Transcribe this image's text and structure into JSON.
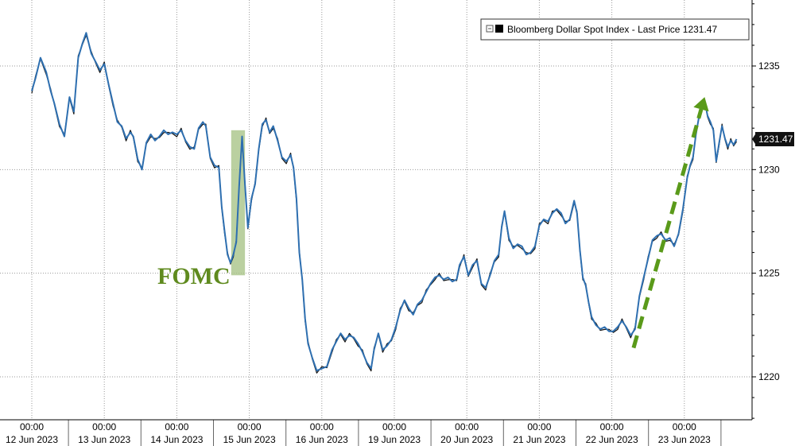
{
  "chart_data": {
    "type": "line",
    "legend": {
      "label": "Bloomberg Dollar Spot Index - Last Price 1231.47",
      "placement": "top-right",
      "icon": "black-square-icon"
    },
    "y_axis": {
      "position": "right",
      "ylim": [
        1217.5,
        1238.5
      ],
      "ticks": [
        1220,
        1225,
        1230,
        1235
      ],
      "tick_labels": [
        "1220",
        "1225",
        "1230",
        "1235"
      ]
    },
    "x_axis": {
      "ticks": [
        {
          "time": "00:00",
          "date": "12 Jun 2023"
        },
        {
          "time": "00:00",
          "date": "13 Jun 2023"
        },
        {
          "time": "00:00",
          "date": "14 Jun 2023"
        },
        {
          "time": "00:00",
          "date": "15 Jun 2023"
        },
        {
          "time": "00:00",
          "date": "16 Jun 2023"
        },
        {
          "time": "00:00",
          "date": "19 Jun 2023"
        },
        {
          "time": "00:00",
          "date": "20 Jun 2023"
        },
        {
          "time": "00:00",
          "date": "21 Jun 2023"
        },
        {
          "time": "00:00",
          "date": "22 Jun 2023"
        },
        {
          "time": "00:00",
          "date": "23 Jun 2023"
        }
      ]
    },
    "grid": {
      "vertical_dotted": true,
      "horizontal_dotted": true
    },
    "last_price": {
      "value": 1231.47,
      "label": "1231.47"
    },
    "series": [
      {
        "name": "Bloomberg Dollar Spot Index",
        "points": [
          [
            0.0,
            1233.8
          ],
          [
            0.05,
            1234.4
          ],
          [
            0.12,
            1235.4
          ],
          [
            0.2,
            1234.7
          ],
          [
            0.26,
            1233.8
          ],
          [
            0.31,
            1233.2
          ],
          [
            0.38,
            1232.2
          ],
          [
            0.45,
            1231.6
          ],
          [
            0.52,
            1233.5
          ],
          [
            0.58,
            1232.8
          ],
          [
            0.64,
            1235.4
          ],
          [
            0.7,
            1236.1
          ],
          [
            0.75,
            1236.6
          ],
          [
            0.82,
            1235.6
          ],
          [
            0.88,
            1235.2
          ],
          [
            0.94,
            1234.8
          ],
          [
            1.0,
            1235.1
          ],
          [
            1.06,
            1234.1
          ],
          [
            1.12,
            1233.2
          ],
          [
            1.18,
            1232.3
          ],
          [
            1.24,
            1232.1
          ],
          [
            1.3,
            1231.5
          ],
          [
            1.36,
            1231.8
          ],
          [
            1.4,
            1231.6
          ],
          [
            1.46,
            1230.5
          ],
          [
            1.52,
            1230.0
          ],
          [
            1.58,
            1231.3
          ],
          [
            1.64,
            1231.7
          ],
          [
            1.7,
            1231.4
          ],
          [
            1.76,
            1231.6
          ],
          [
            1.82,
            1231.9
          ],
          [
            1.88,
            1231.7
          ],
          [
            1.94,
            1231.8
          ],
          [
            2.0,
            1231.7
          ],
          [
            2.06,
            1231.9
          ],
          [
            2.12,
            1231.4
          ],
          [
            2.18,
            1231.1
          ],
          [
            2.24,
            1231.0
          ],
          [
            2.3,
            1232.0
          ],
          [
            2.36,
            1232.3
          ],
          [
            2.4,
            1232.1
          ],
          [
            2.46,
            1230.6
          ],
          [
            2.52,
            1230.2
          ],
          [
            2.58,
            1230.1
          ],
          [
            2.62,
            1228.2
          ],
          [
            2.66,
            1227.0
          ],
          [
            2.7,
            1225.9
          ],
          [
            2.74,
            1225.5
          ],
          [
            2.78,
            1225.9
          ],
          [
            2.82,
            1226.5
          ],
          [
            2.86,
            1229.2
          ],
          [
            2.9,
            1231.6
          ],
          [
            2.94,
            1229.3
          ],
          [
            2.98,
            1227.2
          ],
          [
            3.03,
            1228.6
          ],
          [
            3.08,
            1229.3
          ],
          [
            3.13,
            1231.0
          ],
          [
            3.18,
            1232.2
          ],
          [
            3.23,
            1232.4
          ],
          [
            3.28,
            1231.8
          ],
          [
            3.33,
            1232.1
          ],
          [
            3.39,
            1231.4
          ],
          [
            3.45,
            1230.6
          ],
          [
            3.51,
            1230.4
          ],
          [
            3.57,
            1230.7
          ],
          [
            3.61,
            1230.1
          ],
          [
            3.65,
            1228.6
          ],
          [
            3.69,
            1226.0
          ],
          [
            3.73,
            1224.7
          ],
          [
            3.77,
            1222.8
          ],
          [
            3.81,
            1221.6
          ],
          [
            3.87,
            1220.9
          ],
          [
            3.93,
            1220.3
          ],
          [
            4.0,
            1220.4
          ],
          [
            4.07,
            1220.5
          ],
          [
            4.14,
            1221.3
          ],
          [
            4.2,
            1221.7
          ],
          [
            4.26,
            1222.1
          ],
          [
            4.32,
            1221.8
          ],
          [
            4.38,
            1222.0
          ],
          [
            4.44,
            1221.9
          ],
          [
            4.5,
            1221.6
          ],
          [
            4.56,
            1221.2
          ],
          [
            4.62,
            1220.7
          ],
          [
            4.68,
            1220.4
          ],
          [
            4.72,
            1221.3
          ],
          [
            4.78,
            1222.1
          ],
          [
            4.84,
            1221.3
          ],
          [
            4.9,
            1221.5
          ],
          [
            4.96,
            1221.8
          ],
          [
            5.02,
            1222.4
          ],
          [
            5.08,
            1223.2
          ],
          [
            5.14,
            1223.7
          ],
          [
            5.2,
            1223.3
          ],
          [
            5.26,
            1223.0
          ],
          [
            5.32,
            1223.5
          ],
          [
            5.38,
            1223.7
          ],
          [
            5.44,
            1224.1
          ],
          [
            5.5,
            1224.5
          ],
          [
            5.56,
            1224.8
          ],
          [
            5.62,
            1224.9
          ],
          [
            5.68,
            1224.7
          ],
          [
            5.74,
            1224.8
          ],
          [
            5.8,
            1224.6
          ],
          [
            5.86,
            1224.7
          ],
          [
            5.9,
            1225.4
          ],
          [
            5.96,
            1225.8
          ],
          [
            6.02,
            1224.9
          ],
          [
            6.08,
            1225.4
          ],
          [
            6.14,
            1225.6
          ],
          [
            6.2,
            1224.5
          ],
          [
            6.26,
            1224.3
          ],
          [
            6.32,
            1224.9
          ],
          [
            6.38,
            1225.6
          ],
          [
            6.44,
            1225.9
          ],
          [
            6.48,
            1227.2
          ],
          [
            6.52,
            1228.0
          ],
          [
            6.58,
            1226.7
          ],
          [
            6.64,
            1226.2
          ],
          [
            6.7,
            1226.4
          ],
          [
            6.76,
            1226.3
          ],
          [
            6.82,
            1225.9
          ],
          [
            6.88,
            1226.0
          ],
          [
            6.94,
            1226.3
          ],
          [
            7.0,
            1227.3
          ],
          [
            7.06,
            1227.6
          ],
          [
            7.12,
            1227.5
          ],
          [
            7.18,
            1227.9
          ],
          [
            7.24,
            1228.1
          ],
          [
            7.3,
            1227.9
          ],
          [
            7.36,
            1227.4
          ],
          [
            7.42,
            1227.6
          ],
          [
            7.48,
            1228.5
          ],
          [
            7.52,
            1227.9
          ],
          [
            7.56,
            1226.1
          ],
          [
            7.6,
            1224.8
          ],
          [
            7.64,
            1224.4
          ],
          [
            7.68,
            1223.6
          ],
          [
            7.72,
            1222.9
          ],
          [
            7.78,
            1222.5
          ],
          [
            7.84,
            1222.3
          ],
          [
            7.9,
            1222.4
          ],
          [
            7.96,
            1222.2
          ],
          [
            8.02,
            1222.2
          ],
          [
            8.08,
            1222.4
          ],
          [
            8.14,
            1222.7
          ],
          [
            8.2,
            1222.4
          ],
          [
            8.26,
            1222.0
          ],
          [
            8.32,
            1222.3
          ],
          [
            8.38,
            1223.9
          ],
          [
            8.44,
            1224.8
          ],
          [
            8.5,
            1225.7
          ],
          [
            8.56,
            1226.6
          ],
          [
            8.62,
            1226.8
          ],
          [
            8.68,
            1226.9
          ],
          [
            8.74,
            1226.6
          ],
          [
            8.8,
            1226.7
          ],
          [
            8.86,
            1226.3
          ],
          [
            8.92,
            1226.9
          ],
          [
            8.98,
            1228.1
          ],
          [
            9.04,
            1229.6
          ],
          [
            9.08,
            1230.2
          ],
          [
            9.12,
            1230.6
          ],
          [
            9.16,
            1231.7
          ],
          [
            9.2,
            1232.5
          ],
          [
            9.24,
            1233.1
          ],
          [
            9.28,
            1233.3
          ],
          [
            9.32,
            1232.6
          ],
          [
            9.36,
            1232.3
          ],
          [
            9.4,
            1231.9
          ],
          [
            9.44,
            1230.4
          ],
          [
            9.48,
            1231.3
          ],
          [
            9.52,
            1232.1
          ],
          [
            9.56,
            1231.5
          ],
          [
            9.6,
            1231.1
          ],
          [
            9.64,
            1231.4
          ],
          [
            9.68,
            1231.2
          ],
          [
            9.72,
            1231.47
          ]
        ]
      }
    ],
    "annotations": [
      {
        "type": "text",
        "text": "FOMC",
        "color": "#5f8a1e"
      },
      {
        "type": "highlight",
        "x_range": [
          2.75,
          2.94
        ],
        "color": "#a9c488"
      },
      {
        "type": "dashed-arrow",
        "from": [
          8.3,
          1221.4
        ],
        "to": [
          9.28,
          1233.5
        ],
        "color": "#5a9a1a"
      }
    ],
    "colors": {
      "series_line": "#2e6fb0",
      "series_dark": "#111111",
      "grid": "#9a9a9a",
      "axis": "#000000",
      "last_box": "#111111"
    }
  }
}
